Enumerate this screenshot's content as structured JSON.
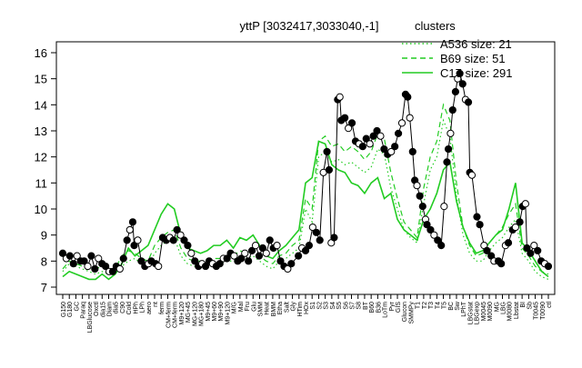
{
  "chart_data": {
    "type": "line",
    "title": "yttP [3032417,3033040,-1]",
    "xlabel": "",
    "ylabel": "",
    "ylim": [
      7,
      16
    ],
    "yticks": [
      7,
      8,
      9,
      10,
      11,
      12,
      13,
      14,
      15,
      16
    ],
    "x_tick_labels": [
      "G150",
      "G180",
      "GC",
      "Paraq",
      "LBGlucose",
      "Oxctl",
      "dia15",
      "Diam",
      "dia5",
      "C90",
      "Cold",
      "HPh",
      "LPh",
      "aero",
      "nt",
      "ferm",
      "CM+ferm",
      "CM+ferm",
      "M9+120",
      "MG+45",
      "MG+120",
      "MG+180",
      "M9+45",
      "M9+60",
      "M9+90",
      "M9+120",
      "M/G",
      "Mal",
      "Fru",
      "Glu",
      "SMM",
      "Heat",
      "BMM",
      "Etha",
      "Salt",
      "Gly",
      "HTim",
      "HOx",
      "S1",
      "S2",
      "S3",
      "S4",
      "S5",
      "S6",
      "S7",
      "S8",
      "BT",
      "B60",
      "B36",
      "LoTm",
      "Pyr",
      "GIS",
      "Glucon",
      "SMMPy",
      "T1",
      "T2",
      "T3",
      "T4",
      "T5",
      "BC",
      "Sw",
      "LPhT",
      "LBGstat",
      "LBGexp",
      "M0045",
      "M0090",
      "MG",
      "LBG",
      "M0080",
      "Lbstat",
      "BI",
      "Sb",
      "T0045",
      "T0090",
      "ctl"
    ],
    "legend": {
      "title": "clusters",
      "placement": "top-right",
      "entries": [
        {
          "label": "A536 size: 21",
          "style": "dotted"
        },
        {
          "label": "B69 size: 51",
          "style": "dashed"
        },
        {
          "label": "C17 size: 291",
          "style": "solid"
        }
      ]
    },
    "series_color": "#22cc22",
    "series": [
      {
        "name": "A536 size: 21",
        "style": "dotted",
        "values": [
          7.6,
          7.9,
          7.8,
          7.7,
          7.6,
          7.5,
          7.6,
          7.5,
          7.6,
          7.8,
          8.0,
          8.1,
          7.9,
          7.8,
          8.3,
          8.6,
          8.8,
          8.9,
          8.2,
          7.9,
          7.8,
          7.8,
          7.8,
          7.9,
          7.9,
          8.0,
          8.0,
          8.1,
          8.1,
          8.2,
          8.0,
          7.8,
          7.7,
          8.0,
          8.1,
          8.3,
          8.5,
          10.0,
          9.5,
          12.0,
          12.2,
          11.8,
          11.9,
          11.7,
          11.8,
          11.6,
          11.4,
          11.6,
          12.3,
          12.1,
          10.8,
          10.0,
          9.2,
          8.9,
          8.7,
          10.2,
          11.5,
          12.0,
          13.4,
          12.8,
          10.5,
          9.0,
          8.3,
          8.0,
          8.0,
          8.4,
          8.7,
          8.9,
          9.3,
          9.6,
          8.3,
          8.0,
          7.6,
          7.4,
          7.3
        ]
      },
      {
        "name": "B69 size: 51",
        "style": "dashed",
        "values": [
          7.7,
          8.0,
          7.9,
          7.8,
          7.7,
          7.7,
          7.8,
          7.6,
          7.7,
          8.2,
          8.4,
          8.3,
          8.1,
          8.0,
          8.6,
          8.9,
          9.1,
          9.2,
          8.5,
          8.1,
          8.0,
          8.0,
          8.0,
          8.1,
          8.1,
          8.2,
          8.2,
          8.4,
          8.3,
          8.4,
          8.2,
          8.0,
          7.9,
          8.2,
          8.3,
          8.6,
          8.8,
          10.4,
          10.0,
          12.6,
          12.8,
          12.4,
          12.5,
          12.2,
          12.4,
          12.2,
          11.9,
          12.2,
          12.9,
          12.7,
          11.4,
          10.4,
          9.5,
          9.2,
          8.9,
          10.8,
          12.0,
          12.6,
          14.0,
          13.4,
          11.0,
          9.3,
          8.6,
          8.2,
          8.3,
          8.7,
          9.0,
          9.3,
          9.8,
          10.2,
          8.5,
          8.2,
          7.8,
          7.6,
          7.5
        ]
      },
      {
        "name": "C17 size: 291",
        "style": "solid",
        "values": [
          7.4,
          7.6,
          7.5,
          7.4,
          7.3,
          7.3,
          7.5,
          7.3,
          7.5,
          7.9,
          8.5,
          8.2,
          8.4,
          8.6,
          9.2,
          9.8,
          10.2,
          10.0,
          9.0,
          8.5,
          8.4,
          8.3,
          8.4,
          8.6,
          8.6,
          8.8,
          8.5,
          8.9,
          8.8,
          9.0,
          8.6,
          8.2,
          8.1,
          8.4,
          8.6,
          8.9,
          9.2,
          11.0,
          11.2,
          12.6,
          12.5,
          11.7,
          11.5,
          11.4,
          11.0,
          10.9,
          10.6,
          11.0,
          11.2,
          10.4,
          10.6,
          9.6,
          9.2,
          9.0,
          8.8,
          9.6,
          10.0,
          10.6,
          11.5,
          11.8,
          10.3,
          9.3,
          8.7,
          8.3,
          8.4,
          8.7,
          9.0,
          9.2,
          10.0,
          11.0,
          8.7,
          8.4,
          8.0,
          7.6,
          7.4
        ]
      }
    ],
    "points": [
      [
        0,
        8.3
      ],
      [
        0.5,
        8.1
      ],
      [
        1,
        8.2
      ],
      [
        1.5,
        7.9
      ],
      [
        2,
        8.2
      ],
      [
        2.5,
        8.0
      ],
      [
        3,
        8.0
      ],
      [
        3.5,
        7.8
      ],
      [
        4,
        8.2
      ],
      [
        4.5,
        7.7
      ],
      [
        5,
        8.1
      ],
      [
        5.5,
        7.9
      ],
      [
        6,
        7.8
      ],
      [
        6.5,
        7.6
      ],
      [
        7,
        7.6
      ],
      [
        7.5,
        7.8
      ],
      [
        8,
        7.7
      ],
      [
        8.5,
        8.1
      ],
      [
        9,
        8.8
      ],
      [
        9.4,
        9.2
      ],
      [
        9.8,
        9.5
      ],
      [
        10,
        8.6
      ],
      [
        10.5,
        8.8
      ],
      [
        11,
        8.0
      ],
      [
        11.5,
        7.8
      ],
      [
        12,
        7.9
      ],
      [
        12.4,
        8.0
      ],
      [
        13,
        7.9
      ],
      [
        13.4,
        7.8
      ],
      [
        14,
        8.9
      ],
      [
        14.5,
        8.8
      ],
      [
        15,
        8.9
      ],
      [
        15.5,
        8.8
      ],
      [
        16,
        9.2
      ],
      [
        16.5,
        9.0
      ],
      [
        17,
        8.8
      ],
      [
        17.5,
        8.6
      ],
      [
        18,
        8.3
      ],
      [
        18.5,
        8.0
      ],
      [
        19,
        7.8
      ],
      [
        19.5,
        7.9
      ],
      [
        20,
        7.8
      ],
      [
        20.5,
        8.0
      ],
      [
        21,
        7.9
      ],
      [
        21.5,
        7.8
      ],
      [
        22,
        7.9
      ],
      [
        22.5,
        8.1
      ],
      [
        23,
        8.1
      ],
      [
        23.5,
        8.3
      ],
      [
        24,
        8.2
      ],
      [
        24.5,
        8.0
      ],
      [
        25,
        8.1
      ],
      [
        25.5,
        8.3
      ],
      [
        26,
        8.0
      ],
      [
        26.5,
        8.4
      ],
      [
        27,
        8.6
      ],
      [
        27.5,
        8.2
      ],
      [
        28,
        8.5
      ],
      [
        28.5,
        8.3
      ],
      [
        29,
        8.8
      ],
      [
        29.5,
        8.5
      ],
      [
        30,
        8.6
      ],
      [
        30.5,
        8.0
      ],
      [
        31,
        7.8
      ],
      [
        31.5,
        7.7
      ],
      [
        32,
        7.9
      ],
      [
        33,
        8.2
      ],
      [
        33.5,
        8.5
      ],
      [
        34,
        8.4
      ],
      [
        34.5,
        8.6
      ],
      [
        35,
        9.3
      ],
      [
        35.5,
        9.1
      ],
      [
        36,
        8.8
      ],
      [
        36.5,
        11.4
      ],
      [
        37,
        12.2
      ],
      [
        37.3,
        11.5
      ],
      [
        37.6,
        8.7
      ],
      [
        38,
        8.9
      ],
      [
        38.5,
        14.2
      ],
      [
        38.8,
        14.3
      ],
      [
        39,
        13.4
      ],
      [
        39.5,
        13.5
      ],
      [
        40,
        13.1
      ],
      [
        40.5,
        13.3
      ],
      [
        41,
        12.6
      ],
      [
        41.5,
        12.5
      ],
      [
        42,
        12.4
      ],
      [
        42.5,
        12.7
      ],
      [
        43,
        12.5
      ],
      [
        43.5,
        12.8
      ],
      [
        44,
        13.0
      ],
      [
        44.5,
        12.8
      ],
      [
        45,
        12.3
      ],
      [
        45.5,
        12.1
      ],
      [
        46,
        12.2
      ],
      [
        46.5,
        12.4
      ],
      [
        47,
        12.9
      ],
      [
        47.5,
        13.3
      ],
      [
        48,
        14.4
      ],
      [
        48.3,
        14.3
      ],
      [
        48.6,
        13.5
      ],
      [
        49,
        12.2
      ],
      [
        49.3,
        11.1
      ],
      [
        49.6,
        10.9
      ],
      [
        50,
        10.5
      ],
      [
        50.4,
        10.1
      ],
      [
        50.8,
        9.6
      ],
      [
        51,
        9.4
      ],
      [
        51.5,
        9.2
      ],
      [
        52,
        9.0
      ],
      [
        52.5,
        8.8
      ],
      [
        53,
        8.6
      ],
      [
        53.4,
        10.1
      ],
      [
        53.8,
        11.8
      ],
      [
        54,
        12.3
      ],
      [
        54.3,
        12.9
      ],
      [
        54.6,
        13.8
      ],
      [
        55,
        14.5
      ],
      [
        55.3,
        15.0
      ],
      [
        55.6,
        15.2
      ],
      [
        56,
        14.8
      ],
      [
        56.4,
        14.2
      ],
      [
        56.8,
        14.1
      ],
      [
        57,
        11.4
      ],
      [
        57.3,
        11.3
      ],
      [
        58,
        9.7
      ],
      [
        58.4,
        9.4
      ],
      [
        59,
        8.6
      ],
      [
        59.4,
        8.4
      ],
      [
        60,
        8.2
      ],
      [
        60.4,
        8.0
      ],
      [
        61,
        8.0
      ],
      [
        61.4,
        7.9
      ],
      [
        62,
        8.6
      ],
      [
        62.4,
        8.7
      ],
      [
        63,
        9.2
      ],
      [
        63.4,
        9.3
      ],
      [
        64,
        9.5
      ],
      [
        64.4,
        10.1
      ],
      [
        64.8,
        10.2
      ],
      [
        65,
        8.5
      ],
      [
        65.5,
        8.3
      ],
      [
        66,
        8.6
      ],
      [
        66.5,
        8.4
      ],
      [
        67,
        8.0
      ],
      [
        67.5,
        7.9
      ],
      [
        68,
        7.8
      ]
    ]
  }
}
